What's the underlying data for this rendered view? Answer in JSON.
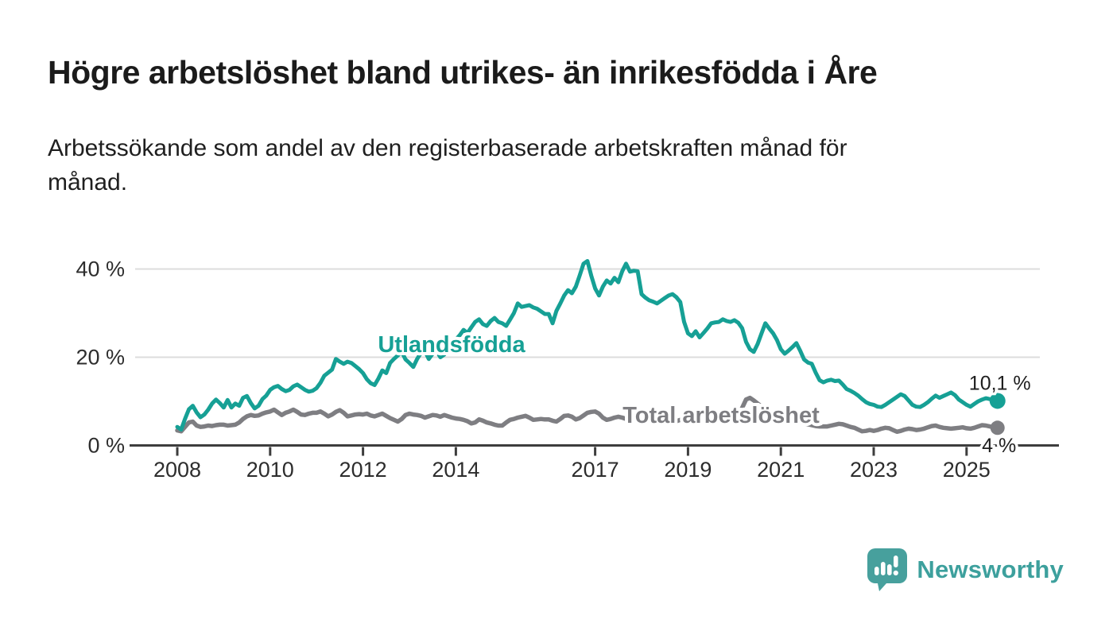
{
  "header": {
    "title": "Högre arbetslöshet bland utrikes- än inrikesfödda i Åre",
    "subtitle": "Arbetssökande som andel av den registerbaserade arbetskraften månad för månad."
  },
  "chart_data": {
    "type": "line",
    "unit": "%",
    "frequency": "monthly",
    "x_start_year": 2008,
    "x_start_month": 1,
    "x_end_year": 2025,
    "x_end_month": 9,
    "xticks": [
      2008,
      2010,
      2012,
      2014,
      2017,
      2019,
      2021,
      2023,
      2025
    ],
    "yticks": [
      {
        "value": 0,
        "label": "0 %"
      },
      {
        "value": 20,
        "label": "20 %"
      },
      {
        "value": 40,
        "label": "40 %"
      }
    ],
    "ylim": [
      0,
      43
    ],
    "grid": "horizontal",
    "colors": {
      "axis": "#3d3d3d",
      "gridline": "#dcdcdc",
      "tick_text": "#2d2d2d",
      "end_label_text": "#1f1f1f"
    },
    "series": [
      {
        "name": "Total arbetslöshet",
        "color": "#7e7e82",
        "end_label": "4 %",
        "values": [
          3.4,
          3.2,
          4.2,
          5.2,
          5.4,
          4.5,
          4.2,
          4.3,
          4.5,
          4.4,
          4.6,
          4.7,
          4.7,
          4.5,
          4.6,
          4.7,
          5.2,
          6.0,
          6.6,
          6.9,
          6.7,
          6.8,
          7.2,
          7.5,
          7.7,
          8.1,
          7.5,
          6.9,
          7.4,
          7.7,
          8.1,
          7.6,
          7.0,
          6.9,
          7.2,
          7.4,
          7.4,
          7.7,
          7.2,
          6.6,
          7.0,
          7.6,
          8.0,
          7.4,
          6.6,
          6.8,
          7.0,
          7.1,
          7.0,
          7.2,
          6.8,
          6.6,
          6.9,
          7.2,
          6.7,
          6.2,
          5.8,
          5.4,
          6.0,
          6.9,
          7.2,
          7.0,
          6.9,
          6.7,
          6.3,
          6.6,
          6.9,
          6.8,
          6.5,
          6.9,
          6.6,
          6.3,
          6.1,
          6.0,
          5.8,
          5.5,
          5.0,
          5.2,
          5.9,
          5.6,
          5.2,
          5.0,
          4.7,
          4.5,
          4.5,
          5.2,
          5.8,
          6.0,
          6.3,
          6.5,
          6.7,
          6.3,
          5.8,
          5.9,
          6.0,
          5.9,
          5.9,
          5.6,
          5.4,
          6.0,
          6.7,
          6.8,
          6.5,
          5.9,
          6.2,
          6.8,
          7.4,
          7.6,
          7.7,
          7.2,
          6.3,
          5.8,
          6.0,
          6.3,
          6.5,
          6.3,
          6.0,
          6.2,
          6.5,
          6.7,
          6.8,
          6.5,
          6.2,
          5.8,
          5.5,
          5.8,
          6.2,
          6.0,
          5.7,
          5.5,
          5.8,
          6.0,
          6.2,
          6.4,
          6.1,
          5.8,
          5.6,
          5.9,
          6.3,
          6.1,
          5.8,
          5.7,
          5.9,
          6.2,
          6.5,
          6.8,
          8.5,
          10.4,
          10.8,
          10.2,
          9.5,
          8.8,
          8.0,
          7.5,
          7.0,
          6.8,
          6.5,
          6.2,
          6.0,
          5.8,
          5.5,
          5.2,
          5.0,
          4.8,
          4.6,
          4.4,
          4.3,
          4.3,
          4.3,
          4.5,
          4.7,
          4.9,
          4.8,
          4.5,
          4.2,
          4.0,
          3.6,
          3.2,
          3.3,
          3.5,
          3.3,
          3.5,
          3.8,
          4.0,
          3.9,
          3.5,
          3.1,
          3.3,
          3.6,
          3.8,
          3.7,
          3.5,
          3.6,
          3.8,
          4.1,
          4.4,
          4.5,
          4.2,
          4.0,
          3.9,
          3.8,
          3.9,
          4.0,
          4.1,
          3.9,
          3.8,
          4.0,
          4.3,
          4.6,
          4.5,
          4.3,
          4.1,
          4.0
        ]
      },
      {
        "name": "Utlandsfödda",
        "color": "#16a095",
        "end_label": "10,1 %",
        "values": [
          4.2,
          3.6,
          6.0,
          8.2,
          9.0,
          7.5,
          6.4,
          7.0,
          8.1,
          9.5,
          10.4,
          9.6,
          8.6,
          10.3,
          8.6,
          9.5,
          9.0,
          10.8,
          11.2,
          9.6,
          8.4,
          9.0,
          10.5,
          11.3,
          12.6,
          13.2,
          13.5,
          12.8,
          12.3,
          12.6,
          13.4,
          13.8,
          13.2,
          12.6,
          12.2,
          12.4,
          13.0,
          14.2,
          15.8,
          16.5,
          17.2,
          19.6,
          19.0,
          18.5,
          19.0,
          18.7,
          18.0,
          17.3,
          16.4,
          15.0,
          14.1,
          13.7,
          15.2,
          17.0,
          16.4,
          18.7,
          19.6,
          20.4,
          21.2,
          19.5,
          18.7,
          17.8,
          19.6,
          21.0,
          21.4,
          19.6,
          20.8,
          21.4,
          20.0,
          20.6,
          21.8,
          23.0,
          24.0,
          25.0,
          26.2,
          25.5,
          26.8,
          28.0,
          28.6,
          27.5,
          27.1,
          28.2,
          28.9,
          28.0,
          27.7,
          27.1,
          28.5,
          30.0,
          32.2,
          31.4,
          31.6,
          31.8,
          31.3,
          31.0,
          30.4,
          29.8,
          29.8,
          27.7,
          30.5,
          32.2,
          34.0,
          35.2,
          34.5,
          36.0,
          38.5,
          41.2,
          41.8,
          38.5,
          35.6,
          34.0,
          36.0,
          37.4,
          36.7,
          38.0,
          37.0,
          39.5,
          41.2,
          39.4,
          39.6,
          39.5,
          34.3,
          33.5,
          32.9,
          32.6,
          32.2,
          32.8,
          33.4,
          34.0,
          34.3,
          33.6,
          32.5,
          28.0,
          25.4,
          24.8,
          25.9,
          24.5,
          25.5,
          26.5,
          27.7,
          27.9,
          28.0,
          28.6,
          28.2,
          28.0,
          28.4,
          27.8,
          26.6,
          23.5,
          21.8,
          21.2,
          23.0,
          25.4,
          27.7,
          26.5,
          25.4,
          23.9,
          21.8,
          20.8,
          21.5,
          22.3,
          23.2,
          21.5,
          19.5,
          18.8,
          18.5,
          16.5,
          14.8,
          14.3,
          14.7,
          14.9,
          14.6,
          14.7,
          13.8,
          12.8,
          12.4,
          11.9,
          11.3,
          10.5,
          9.8,
          9.4,
          9.2,
          8.8,
          8.7,
          9.2,
          9.8,
          10.4,
          11.0,
          11.6,
          11.2,
          10.2,
          9.2,
          8.8,
          8.7,
          9.2,
          9.8,
          10.6,
          11.3,
          10.8,
          11.2,
          11.6,
          12.0,
          11.4,
          10.4,
          9.8,
          9.2,
          8.8,
          9.4,
          10.0,
          10.4,
          10.7,
          10.5,
          10.2,
          10.1
        ]
      }
    ],
    "legend_position": "inline-labels-on-chart"
  },
  "branding": {
    "logo_text": "Newsworthy",
    "logo_color": "#47a09d",
    "logo_icon": "speech-bubble-bar-chart-icon"
  }
}
